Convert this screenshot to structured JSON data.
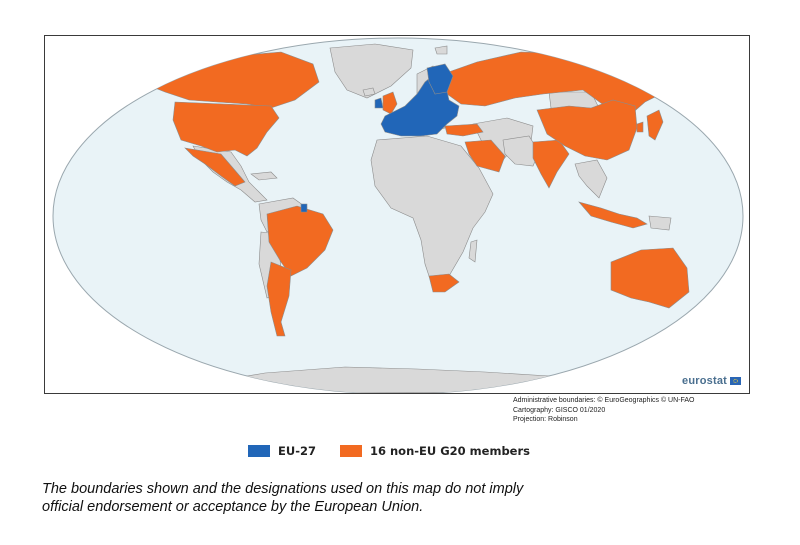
{
  "map": {
    "projection_shape": "robinson-oval",
    "colors": {
      "ocean": "#e9f3f7",
      "outline": "#9aa7ae",
      "non_member_land": "#d9d9d9",
      "border": "#8c8c8c",
      "eu": "#2166b8",
      "g20": "#f26a21"
    },
    "logo": {
      "text": "eurostat",
      "icon": "eu-flag-icon"
    }
  },
  "credits": {
    "line1": "Administrative boundaries: © EuroGeographics © UN-FAO",
    "line2": "Cartography: GISCO 01/2020",
    "line3": "Projection: Robinson"
  },
  "legend": {
    "items": [
      {
        "label": "EU-27",
        "color": "#2166b8"
      },
      {
        "label": "16 non-EU G20 members",
        "color": "#f26a21"
      }
    ]
  },
  "disclaimer": {
    "line1": "The boundaries shown and the designations used on this map do not imply",
    "line2": "official endorsement or acceptance by the European Union."
  }
}
